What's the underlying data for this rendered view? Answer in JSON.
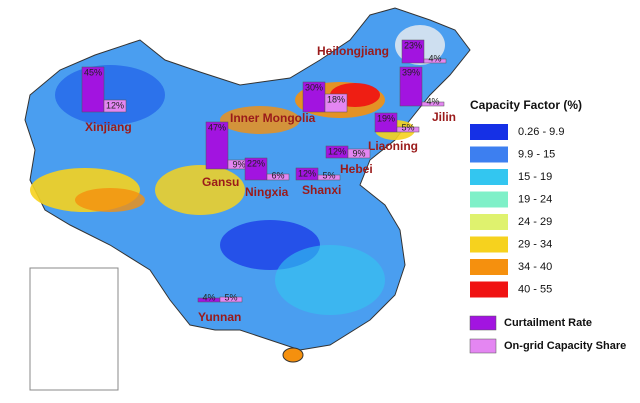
{
  "legend": {
    "title": "Capacity Factor (%)",
    "items": [
      {
        "label": "0.26 - 9.9",
        "color": "#1530e6"
      },
      {
        "label": "9.9 - 15",
        "color": "#3d7ff0"
      },
      {
        "label": "15 - 19",
        "color": "#33c6f0"
      },
      {
        "label": "19 - 24",
        "color": "#7ff0c8"
      },
      {
        "label": "24 - 29",
        "color": "#dff26e"
      },
      {
        "label": "29 - 34",
        "color": "#f6d21e"
      },
      {
        "label": "34 - 40",
        "color": "#f5900e"
      },
      {
        "label": "40 - 55",
        "color": "#f01212"
      }
    ],
    "bars": [
      {
        "label": "Curtailment Rate",
        "color": "#a214e0"
      },
      {
        "label": "On-grid Capacity Share",
        "color": "#e486f2"
      }
    ]
  },
  "provinces": [
    {
      "name": "Xinjiang",
      "curtailment": {
        "value": 45,
        "label": "45%"
      },
      "share": {
        "value": 12,
        "label": "12%"
      }
    },
    {
      "name": "Gansu",
      "curtailment": {
        "value": 47,
        "label": "47%"
      },
      "share": {
        "value": 9,
        "label": "9%"
      }
    },
    {
      "name": "Ningxia",
      "curtailment": {
        "value": 22,
        "label": "22%"
      },
      "share": {
        "value": 6,
        "label": "6%"
      }
    },
    {
      "name": "Inner Mongolia",
      "curtailment": {
        "value": 30,
        "label": "30%"
      },
      "share": {
        "value": 18,
        "label": "18%"
      }
    },
    {
      "name": "Heilongjiang",
      "curtailment": {
        "value": 23,
        "label": "23%"
      },
      "share": {
        "value": 4,
        "label": "4%"
      }
    },
    {
      "name": "Jilin",
      "curtailment": {
        "value": 39,
        "label": "39%"
      },
      "share": {
        "value": 4,
        "label": "4%"
      }
    },
    {
      "name": "Liaoning",
      "curtailment": {
        "value": 19,
        "label": "19%"
      },
      "share": {
        "value": 5,
        "label": "5%"
      }
    },
    {
      "name": "Hebei",
      "curtailment": {
        "value": 12,
        "label": "12%"
      },
      "share": {
        "value": 9,
        "label": "9%"
      }
    },
    {
      "name": "Shanxi",
      "curtailment": {
        "value": 12,
        "label": "12%"
      },
      "share": {
        "value": 5,
        "label": "5%"
      }
    },
    {
      "name": "Yunnan",
      "curtailment": {
        "value": 4,
        "label": "4%"
      },
      "share": {
        "value": 5,
        "label": "5%"
      }
    }
  ]
}
